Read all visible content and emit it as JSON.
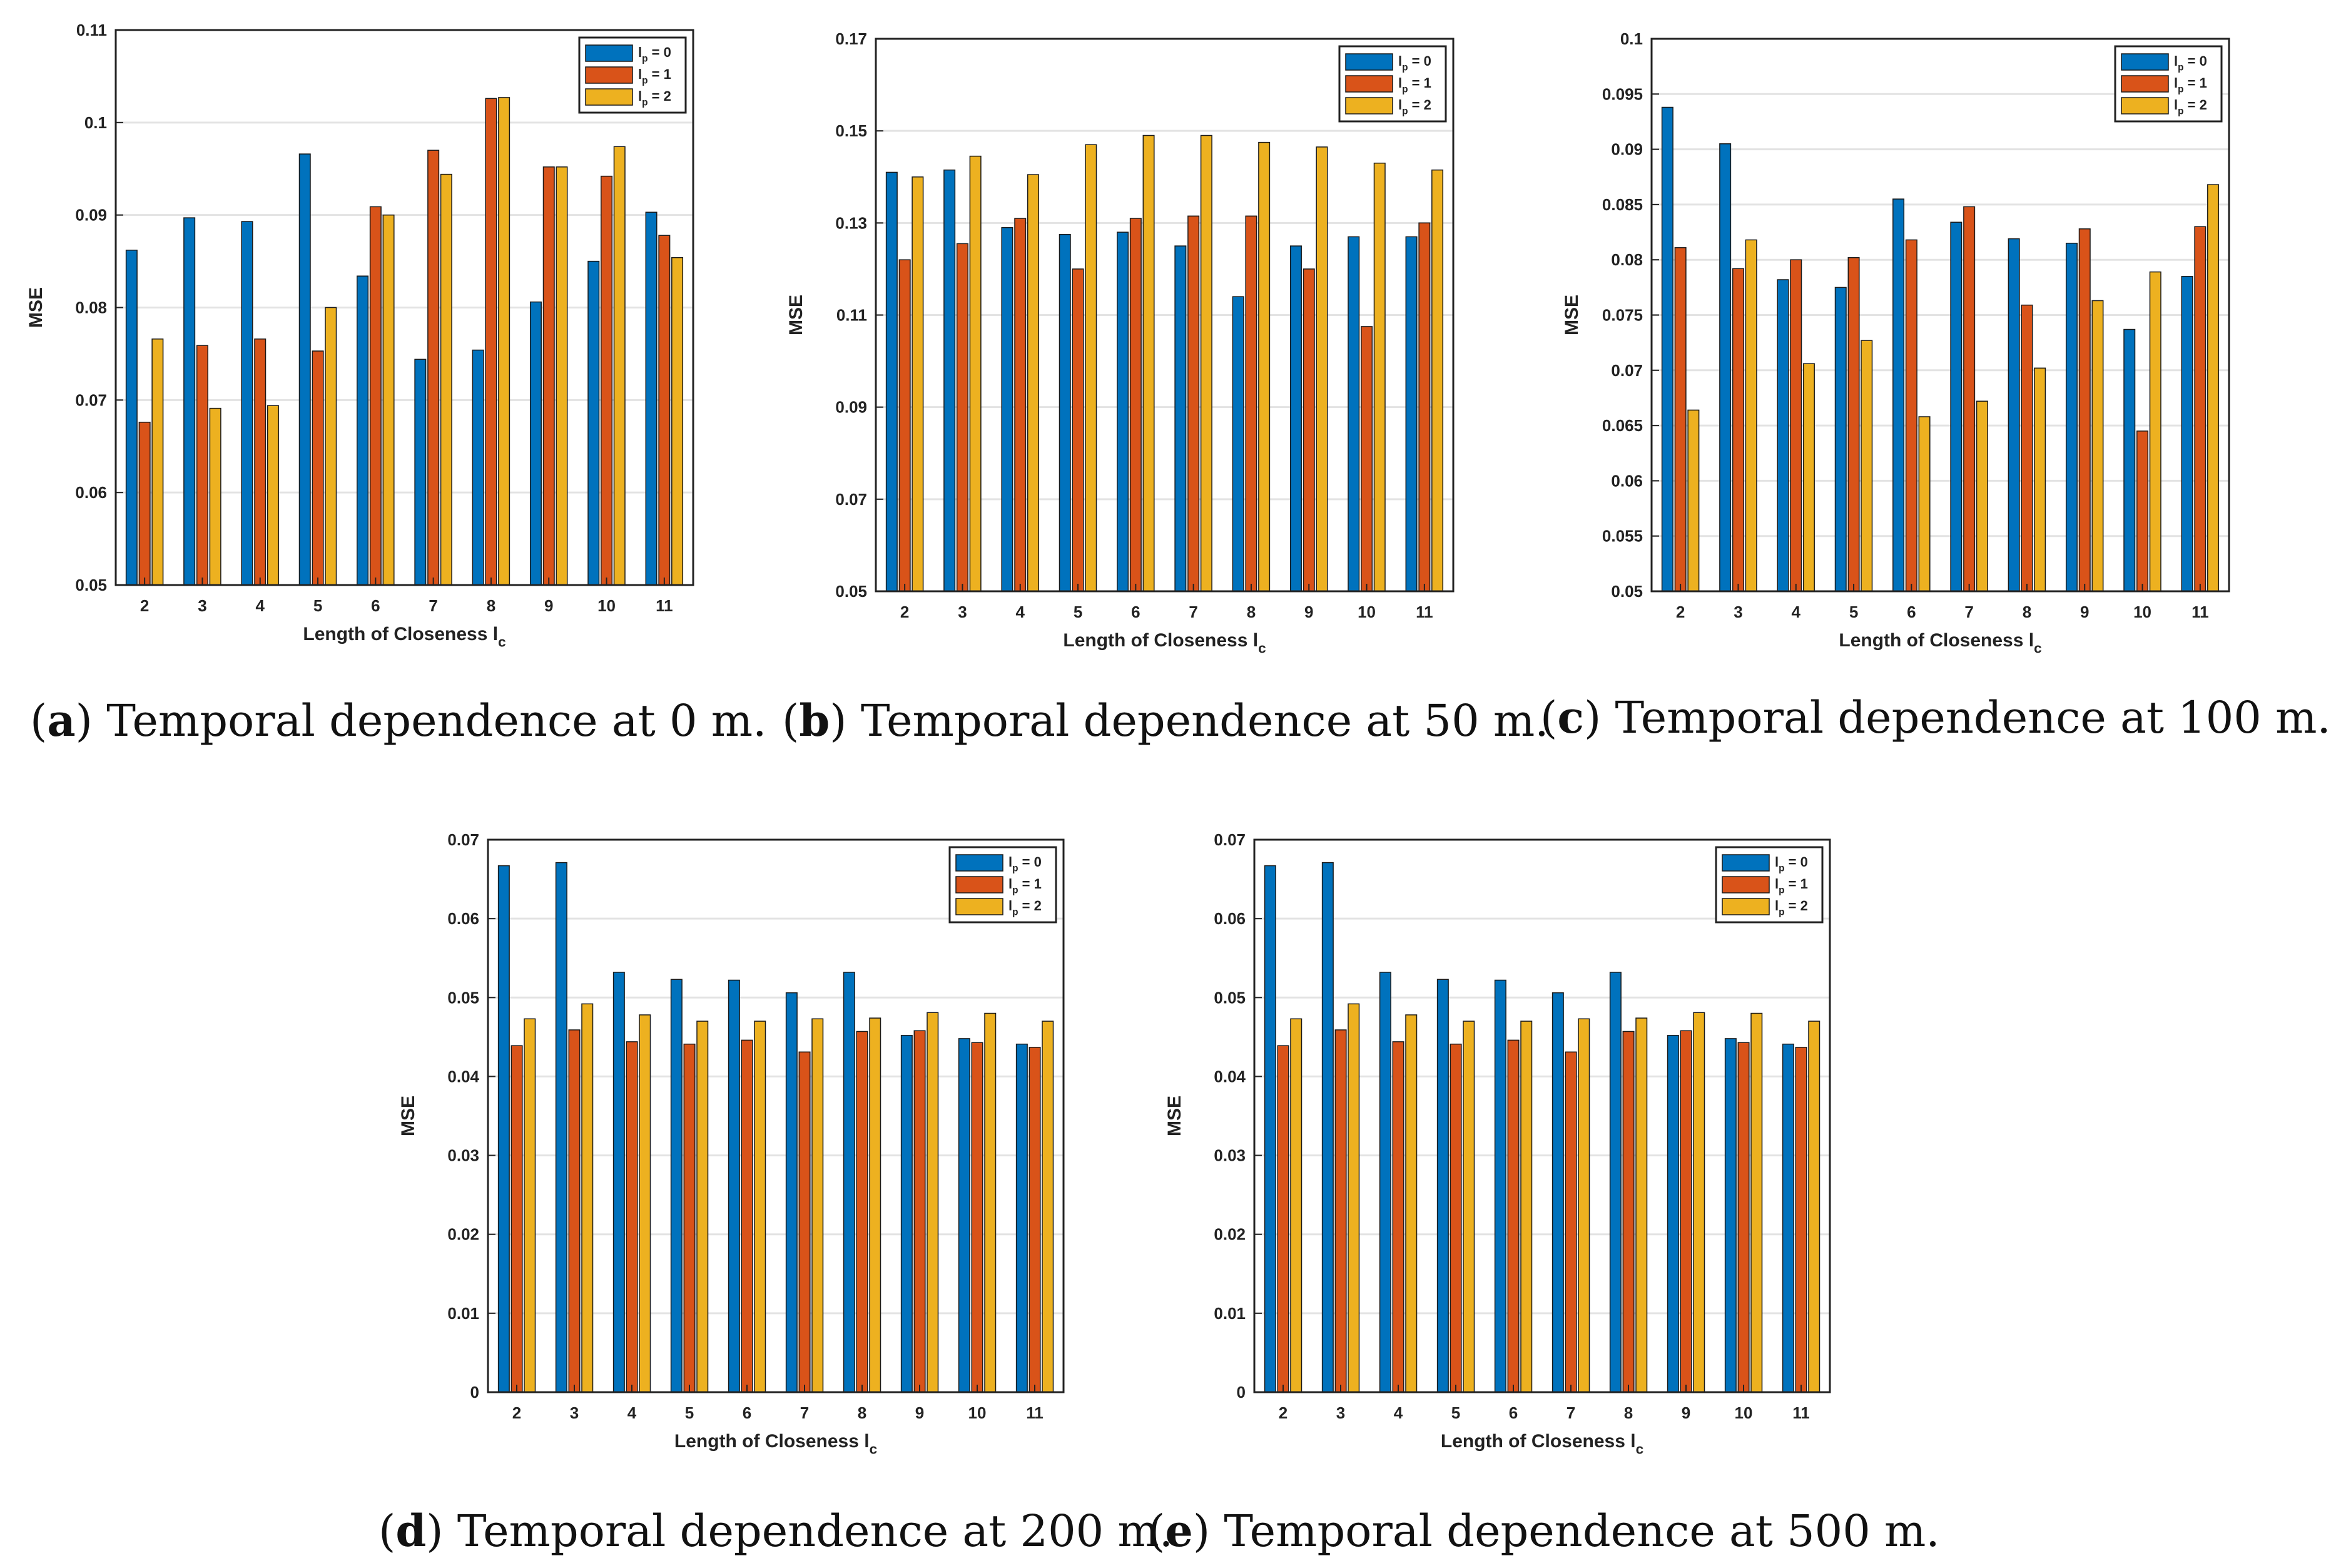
{
  "series_colors": [
    "#0072BD",
    "#D95319",
    "#EDB120"
  ],
  "legend_labels": [
    "l_p = 0",
    "l_p = 1",
    "l_p = 2"
  ],
  "chart_data": [
    {
      "type": "bar",
      "letter": "a",
      "caption": "Temporal dependence at 0 m.",
      "xlabel": "Length of Closeness l_c",
      "ylabel": "MSE",
      "ylim": [
        0.05,
        0.11
      ],
      "yticks": [
        "0.05",
        "0.06",
        "0.07",
        "0.08",
        "0.09",
        "0.1",
        "0.11"
      ],
      "grid": true,
      "legend_position": "top-right",
      "categories": [
        "2",
        "3",
        "4",
        "5",
        "6",
        "7",
        "8",
        "9",
        "10",
        "11"
      ],
      "series": [
        {
          "name": "l_p = 0",
          "values": [
            0.0862,
            0.0897,
            0.0893,
            0.0966,
            0.0834,
            0.0744,
            0.0754,
            0.0806,
            0.085,
            0.0903
          ]
        },
        {
          "name": "l_p = 1",
          "values": [
            0.0676,
            0.0759,
            0.0766,
            0.0753,
            0.0909,
            0.097,
            0.1026,
            0.0952,
            0.0942,
            0.0878
          ]
        },
        {
          "name": "l_p = 2",
          "values": [
            0.0766,
            0.0691,
            0.0694,
            0.08,
            0.09,
            0.0944,
            0.1027,
            0.0952,
            0.0974,
            0.0854
          ]
        }
      ]
    },
    {
      "type": "bar",
      "letter": "b",
      "caption": "Temporal dependence at 50 m.",
      "xlabel": "Length of Closeness l_c",
      "ylabel": "MSE",
      "ylim": [
        0.05,
        0.17
      ],
      "yticks": [
        "0.05",
        "0.07",
        "0.09",
        "0.11",
        "0.13",
        "0.15",
        "0.17"
      ],
      "grid": true,
      "legend_position": "top-right",
      "categories": [
        "2",
        "3",
        "4",
        "5",
        "6",
        "7",
        "8",
        "9",
        "10",
        "11"
      ],
      "series": [
        {
          "name": "l_p = 0",
          "values": [
            0.141,
            0.1415,
            0.129,
            0.1275,
            0.128,
            0.125,
            0.114,
            0.125,
            0.127,
            0.127
          ]
        },
        {
          "name": "l_p = 1",
          "values": [
            0.122,
            0.1255,
            0.131,
            0.12,
            0.131,
            0.1315,
            0.1315,
            0.12,
            0.1075,
            0.13
          ]
        },
        {
          "name": "l_p = 2",
          "values": [
            0.14,
            0.1445,
            0.1405,
            0.147,
            0.149,
            0.149,
            0.1475,
            0.1465,
            0.143,
            0.1415
          ]
        }
      ]
    },
    {
      "type": "bar",
      "letter": "c",
      "caption": "Temporal dependence at 100 m.",
      "xlabel": "Length of Closeness l_c",
      "ylabel": "MSE",
      "ylim": [
        0.05,
        0.1
      ],
      "yticks": [
        "0.05",
        "0.055",
        "0.06",
        "0.065",
        "0.07",
        "0.075",
        "0.08",
        "0.085",
        "0.09",
        "0.095",
        "0.1"
      ],
      "grid": true,
      "legend_position": "top-right",
      "categories": [
        "2",
        "3",
        "4",
        "5",
        "6",
        "7",
        "8",
        "9",
        "10",
        "11"
      ],
      "series": [
        {
          "name": "l_p = 0",
          "values": [
            0.0938,
            0.0905,
            0.0782,
            0.0775,
            0.0855,
            0.0834,
            0.0819,
            0.0815,
            0.0737,
            0.0785
          ]
        },
        {
          "name": "l_p = 1",
          "values": [
            0.0811,
            0.0792,
            0.08,
            0.0802,
            0.0818,
            0.0848,
            0.0759,
            0.0828,
            0.0645,
            0.083
          ]
        },
        {
          "name": "l_p = 2",
          "values": [
            0.0664,
            0.0818,
            0.0706,
            0.0727,
            0.0658,
            0.0672,
            0.0702,
            0.0763,
            0.0789,
            0.0868
          ]
        }
      ]
    },
    {
      "type": "bar",
      "letter": "d",
      "caption": "Temporal dependence at 200 m.",
      "xlabel": "Length of Closeness l_c",
      "ylabel": "MSE",
      "ylim": [
        0,
        0.07
      ],
      "yticks": [
        "0",
        "0.01",
        "0.02",
        "0.03",
        "0.04",
        "0.05",
        "0.06",
        "0.07"
      ],
      "grid": true,
      "legend_position": "top-right",
      "categories": [
        "2",
        "3",
        "4",
        "5",
        "6",
        "7",
        "8",
        "9",
        "10",
        "11"
      ],
      "series": [
        {
          "name": "l_p = 0",
          "values": [
            0.0667,
            0.0671,
            0.0532,
            0.0523,
            0.0522,
            0.0506,
            0.0532,
            0.0452,
            0.0448,
            0.0441
          ]
        },
        {
          "name": "l_p = 1",
          "values": [
            0.0439,
            0.0459,
            0.0444,
            0.0441,
            0.0446,
            0.0431,
            0.0457,
            0.0458,
            0.0443,
            0.0437
          ]
        },
        {
          "name": "l_p = 2",
          "values": [
            0.0473,
            0.0492,
            0.0478,
            0.047,
            0.047,
            0.0473,
            0.0474,
            0.0481,
            0.048,
            0.047
          ]
        }
      ]
    },
    {
      "type": "bar",
      "letter": "e",
      "caption": "Temporal dependence at 500 m.",
      "xlabel": "Length of Closeness l_c",
      "ylabel": "MSE",
      "ylim": [
        0,
        0.07
      ],
      "yticks": [
        "0",
        "0.01",
        "0.02",
        "0.03",
        "0.04",
        "0.05",
        "0.06",
        "0.07"
      ],
      "grid": true,
      "legend_position": "top-right",
      "categories": [
        "2",
        "3",
        "4",
        "5",
        "6",
        "7",
        "8",
        "9",
        "10",
        "11"
      ],
      "series": [
        {
          "name": "l_p = 0",
          "values": [
            0.0667,
            0.0671,
            0.0532,
            0.0523,
            0.0522,
            0.0506,
            0.0532,
            0.0452,
            0.0448,
            0.0441
          ]
        },
        {
          "name": "l_p = 1",
          "values": [
            0.0439,
            0.0459,
            0.0444,
            0.0441,
            0.0446,
            0.0431,
            0.0457,
            0.0458,
            0.0443,
            0.0437
          ]
        },
        {
          "name": "l_p = 2",
          "values": [
            0.0473,
            0.0492,
            0.0478,
            0.047,
            0.047,
            0.0473,
            0.0474,
            0.0481,
            0.048,
            0.047
          ]
        }
      ]
    }
  ]
}
